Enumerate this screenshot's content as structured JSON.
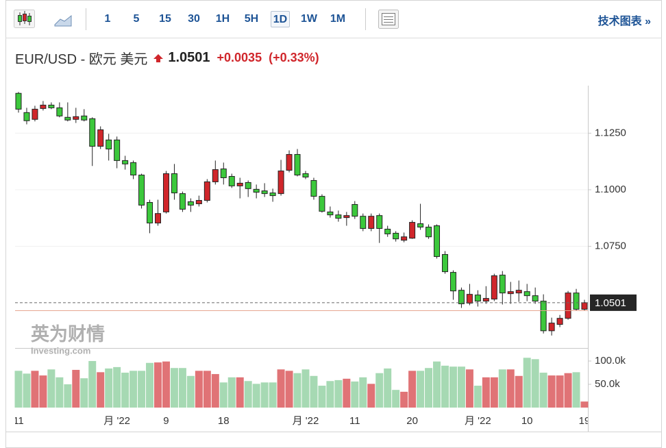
{
  "toolbar": {
    "intervals": [
      "1",
      "5",
      "15",
      "30",
      "1H",
      "5H",
      "1D",
      "1W",
      "1M"
    ],
    "selected": "1D",
    "link": "技术图表",
    "link_arrow": "»"
  },
  "header": {
    "symbol": "EUR/USD - 欧元 美元",
    "price": "1.0501",
    "change": "+0.0035",
    "change_pct": "(+0.33%)"
  },
  "watermark": {
    "brand": "英为财情",
    "site": "Investing.com"
  },
  "chart_data": {
    "type": "candlestick",
    "categories": [
      "11",
      null,
      null,
      null,
      null,
      null,
      null,
      null,
      null,
      null,
      null,
      null,
      "月 '22",
      null,
      null,
      null,
      null,
      null,
      "9",
      null,
      null,
      null,
      null,
      null,
      null,
      "18",
      null,
      null,
      null,
      null,
      null,
      null,
      null,
      null,
      null,
      "月 '22",
      null,
      null,
      null,
      null,
      null,
      "11",
      null,
      null,
      null,
      null,
      null,
      null,
      "20",
      null,
      null,
      null,
      null,
      null,
      null,
      null,
      "月 '22",
      null,
      null,
      null,
      null,
      null,
      "10",
      null,
      null,
      null,
      null,
      null,
      null,
      "19"
    ],
    "open": [
      1.1426,
      1.1341,
      1.1311,
      1.1359,
      1.1374,
      1.1362,
      1.132,
      1.1311,
      1.1326,
      1.1314,
      1.1192,
      1.122,
      1.122,
      1.1129,
      1.112,
      1.1065,
      1.0944,
      1.0853,
      1.0902,
      1.1071,
      1.0983,
      1.0947,
      1.0938,
      1.0953,
      1.1035,
      1.1092,
      1.1059,
      1.1017,
      1.1032,
      1.1002,
      1.0995,
      1.0986,
      1.0983,
      1.1086,
      1.1156,
      1.1071,
      1.1041,
      1.0971,
      1.0902,
      1.0889,
      1.0877,
      1.0935,
      1.0883,
      1.0829,
      1.0886,
      1.0826,
      1.0808,
      1.0777,
      1.0786,
      1.085,
      1.0835,
      1.0841,
      1.0714,
      1.0635,
      1.0556,
      1.0499,
      1.0535,
      1.0508,
      1.0517,
      1.0623,
      1.0541,
      1.0544,
      1.055,
      1.0532,
      1.0508,
      1.0377,
      1.0405,
      1.0432,
      1.0544,
      1.0472
    ],
    "high": [
      1.1432,
      1.1362,
      1.1371,
      1.1392,
      1.1386,
      1.1386,
      1.1386,
      1.1362,
      1.1356,
      1.132,
      1.128,
      1.1247,
      1.1235,
      1.115,
      1.1129,
      1.1071,
      1.0956,
      1.0956,
      1.1083,
      1.1114,
      1.0992,
      1.0962,
      1.0974,
      1.1047,
      1.1129,
      1.112,
      1.1071,
      1.1053,
      1.1041,
      1.1023,
      1.1029,
      1.1005,
      1.1132,
      1.1174,
      1.118,
      1.1083,
      1.1053,
      1.098,
      1.0926,
      1.0908,
      1.0902,
      1.095,
      1.0895,
      1.0895,
      1.0895,
      1.0841,
      1.0817,
      1.0811,
      1.0865,
      1.0938,
      1.0847,
      1.0847,
      1.0729,
      1.0644,
      1.0568,
      1.0584,
      1.0556,
      1.0574,
      1.0629,
      1.0641,
      1.0593,
      1.0599,
      1.0584,
      1.0568,
      1.0538,
      1.0435,
      1.0447,
      1.0553,
      1.0562,
      1.0514
    ],
    "low": [
      1.1341,
      1.1289,
      1.1302,
      1.135,
      1.1356,
      1.132,
      1.1302,
      1.1295,
      1.1302,
      1.1105,
      1.118,
      1.1129,
      1.1095,
      1.1089,
      1.1047,
      1.0917,
      1.0808,
      1.0841,
      1.0895,
      1.0956,
      1.0902,
      1.0902,
      1.0926,
      1.0944,
      1.1023,
      1.1023,
      1.1008,
      1.0962,
      1.0968,
      1.0962,
      1.0968,
      1.0947,
      1.0974,
      1.1077,
      1.1059,
      1.1047,
      1.0956,
      1.0899,
      1.0877,
      1.0859,
      1.0841,
      1.0871,
      1.0817,
      1.0817,
      1.0765,
      1.0792,
      1.0771,
      1.0768,
      1.0783,
      1.0823,
      1.0783,
      1.0696,
      1.0629,
      1.0514,
      1.0478,
      1.049,
      1.0484,
      1.0496,
      1.0508,
      1.0493,
      1.0496,
      1.0505,
      1.0508,
      1.0496,
      1.0365,
      1.0356,
      1.0393,
      1.0426,
      1.0466,
      1.0466
    ],
    "close": [
      1.1356,
      1.1305,
      1.1356,
      1.1374,
      1.1362,
      1.1326,
      1.1308,
      1.1323,
      1.1308,
      1.1192,
      1.1265,
      1.118,
      1.1129,
      1.1114,
      1.1065,
      1.0932,
      1.0853,
      1.0895,
      1.1071,
      1.0986,
      1.0914,
      1.0932,
      1.0953,
      1.1035,
      1.1089,
      1.1053,
      1.1017,
      1.1029,
      1.1005,
      1.0989,
      1.0983,
      1.0974,
      1.1083,
      1.1156,
      1.1065,
      1.1056,
      1.0971,
      1.0905,
      1.0889,
      1.0874,
      1.0886,
      1.0883,
      1.0829,
      1.0883,
      1.0829,
      1.0805,
      1.0783,
      1.0792,
      1.0856,
      1.0835,
      1.0792,
      1.0705,
      1.0638,
      1.0553,
      1.0496,
      1.0538,
      1.0508,
      1.052,
      1.062,
      1.0544,
      1.055,
      1.0556,
      1.0532,
      1.0508,
      1.0377,
      1.0411,
      1.0432,
      1.0544,
      1.0472,
      1.0501
    ],
    "volume": [
      79000,
      73000,
      79000,
      69000,
      82000,
      65000,
      50000,
      81000,
      63000,
      100000,
      76000,
      84000,
      87000,
      75000,
      79000,
      79000,
      96000,
      97000,
      99000,
      85000,
      85000,
      68000,
      79000,
      79000,
      72000,
      54000,
      65000,
      65000,
      57000,
      51000,
      54000,
      54000,
      82000,
      79000,
      74000,
      82000,
      68000,
      47000,
      57000,
      59000,
      62000,
      56000,
      65000,
      51000,
      74000,
      84000,
      38000,
      34000,
      79000,
      79000,
      85000,
      99000,
      90000,
      88000,
      88000,
      82000,
      47000,
      65000,
      65000,
      82000,
      82000,
      68000,
      107000,
      104000,
      75000,
      69000,
      69000,
      74000,
      76000,
      13000
    ],
    "up_color": "#d0262b",
    "down_color": "#3cc83c",
    "up_volume_color": "#e07376",
    "down_volume_color": "#a6d9b3",
    "ylim": [
      1.031,
      1.146
    ],
    "yticks": [
      {
        "value": 1.125,
        "label": "1.1250"
      },
      {
        "value": 1.1,
        "label": "1.1000"
      },
      {
        "value": 1.075,
        "label": "1.0750"
      }
    ],
    "volume_ylim": [
      0,
      128000
    ],
    "volume_ticks": [
      {
        "value": 100000,
        "label": "100.0k"
      },
      {
        "value": 50000,
        "label": "50.0k"
      }
    ],
    "current_price": 1.0501,
    "previous_close": 1.0466,
    "grid": true
  }
}
